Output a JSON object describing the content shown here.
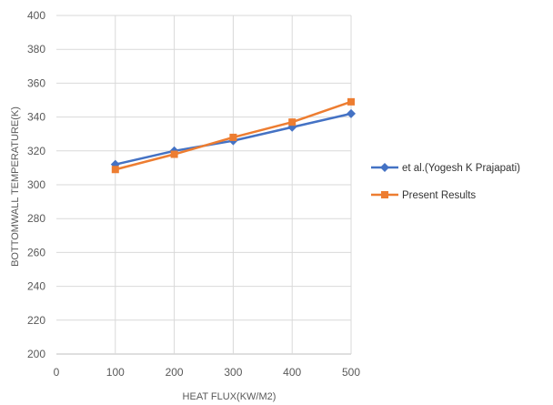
{
  "chart_data": {
    "type": "line",
    "xlabel": "HEAT FLUX(KW/M2)",
    "ylabel": "BOTTOMWALL TEMPERATURE(K)",
    "xlim": [
      0,
      500
    ],
    "ylim": [
      200,
      400
    ],
    "xticks": [
      "0",
      "100",
      "200",
      "300",
      "400",
      "500"
    ],
    "yticks": [
      "200",
      "220",
      "240",
      "260",
      "280",
      "300",
      "320",
      "340",
      "360",
      "380",
      "400"
    ],
    "grid": true,
    "legend_position": "right",
    "x": [
      100,
      200,
      300,
      400,
      500
    ],
    "series": [
      {
        "name": "et al.(Yogesh K Prajapati)",
        "values": [
          312,
          320,
          326,
          334,
          342
        ],
        "color": "#4472c4",
        "marker": "diamond"
      },
      {
        "name": "Present Results",
        "values": [
          309,
          318,
          328,
          337,
          349
        ],
        "color": "#ed7d31",
        "marker": "square"
      }
    ]
  }
}
